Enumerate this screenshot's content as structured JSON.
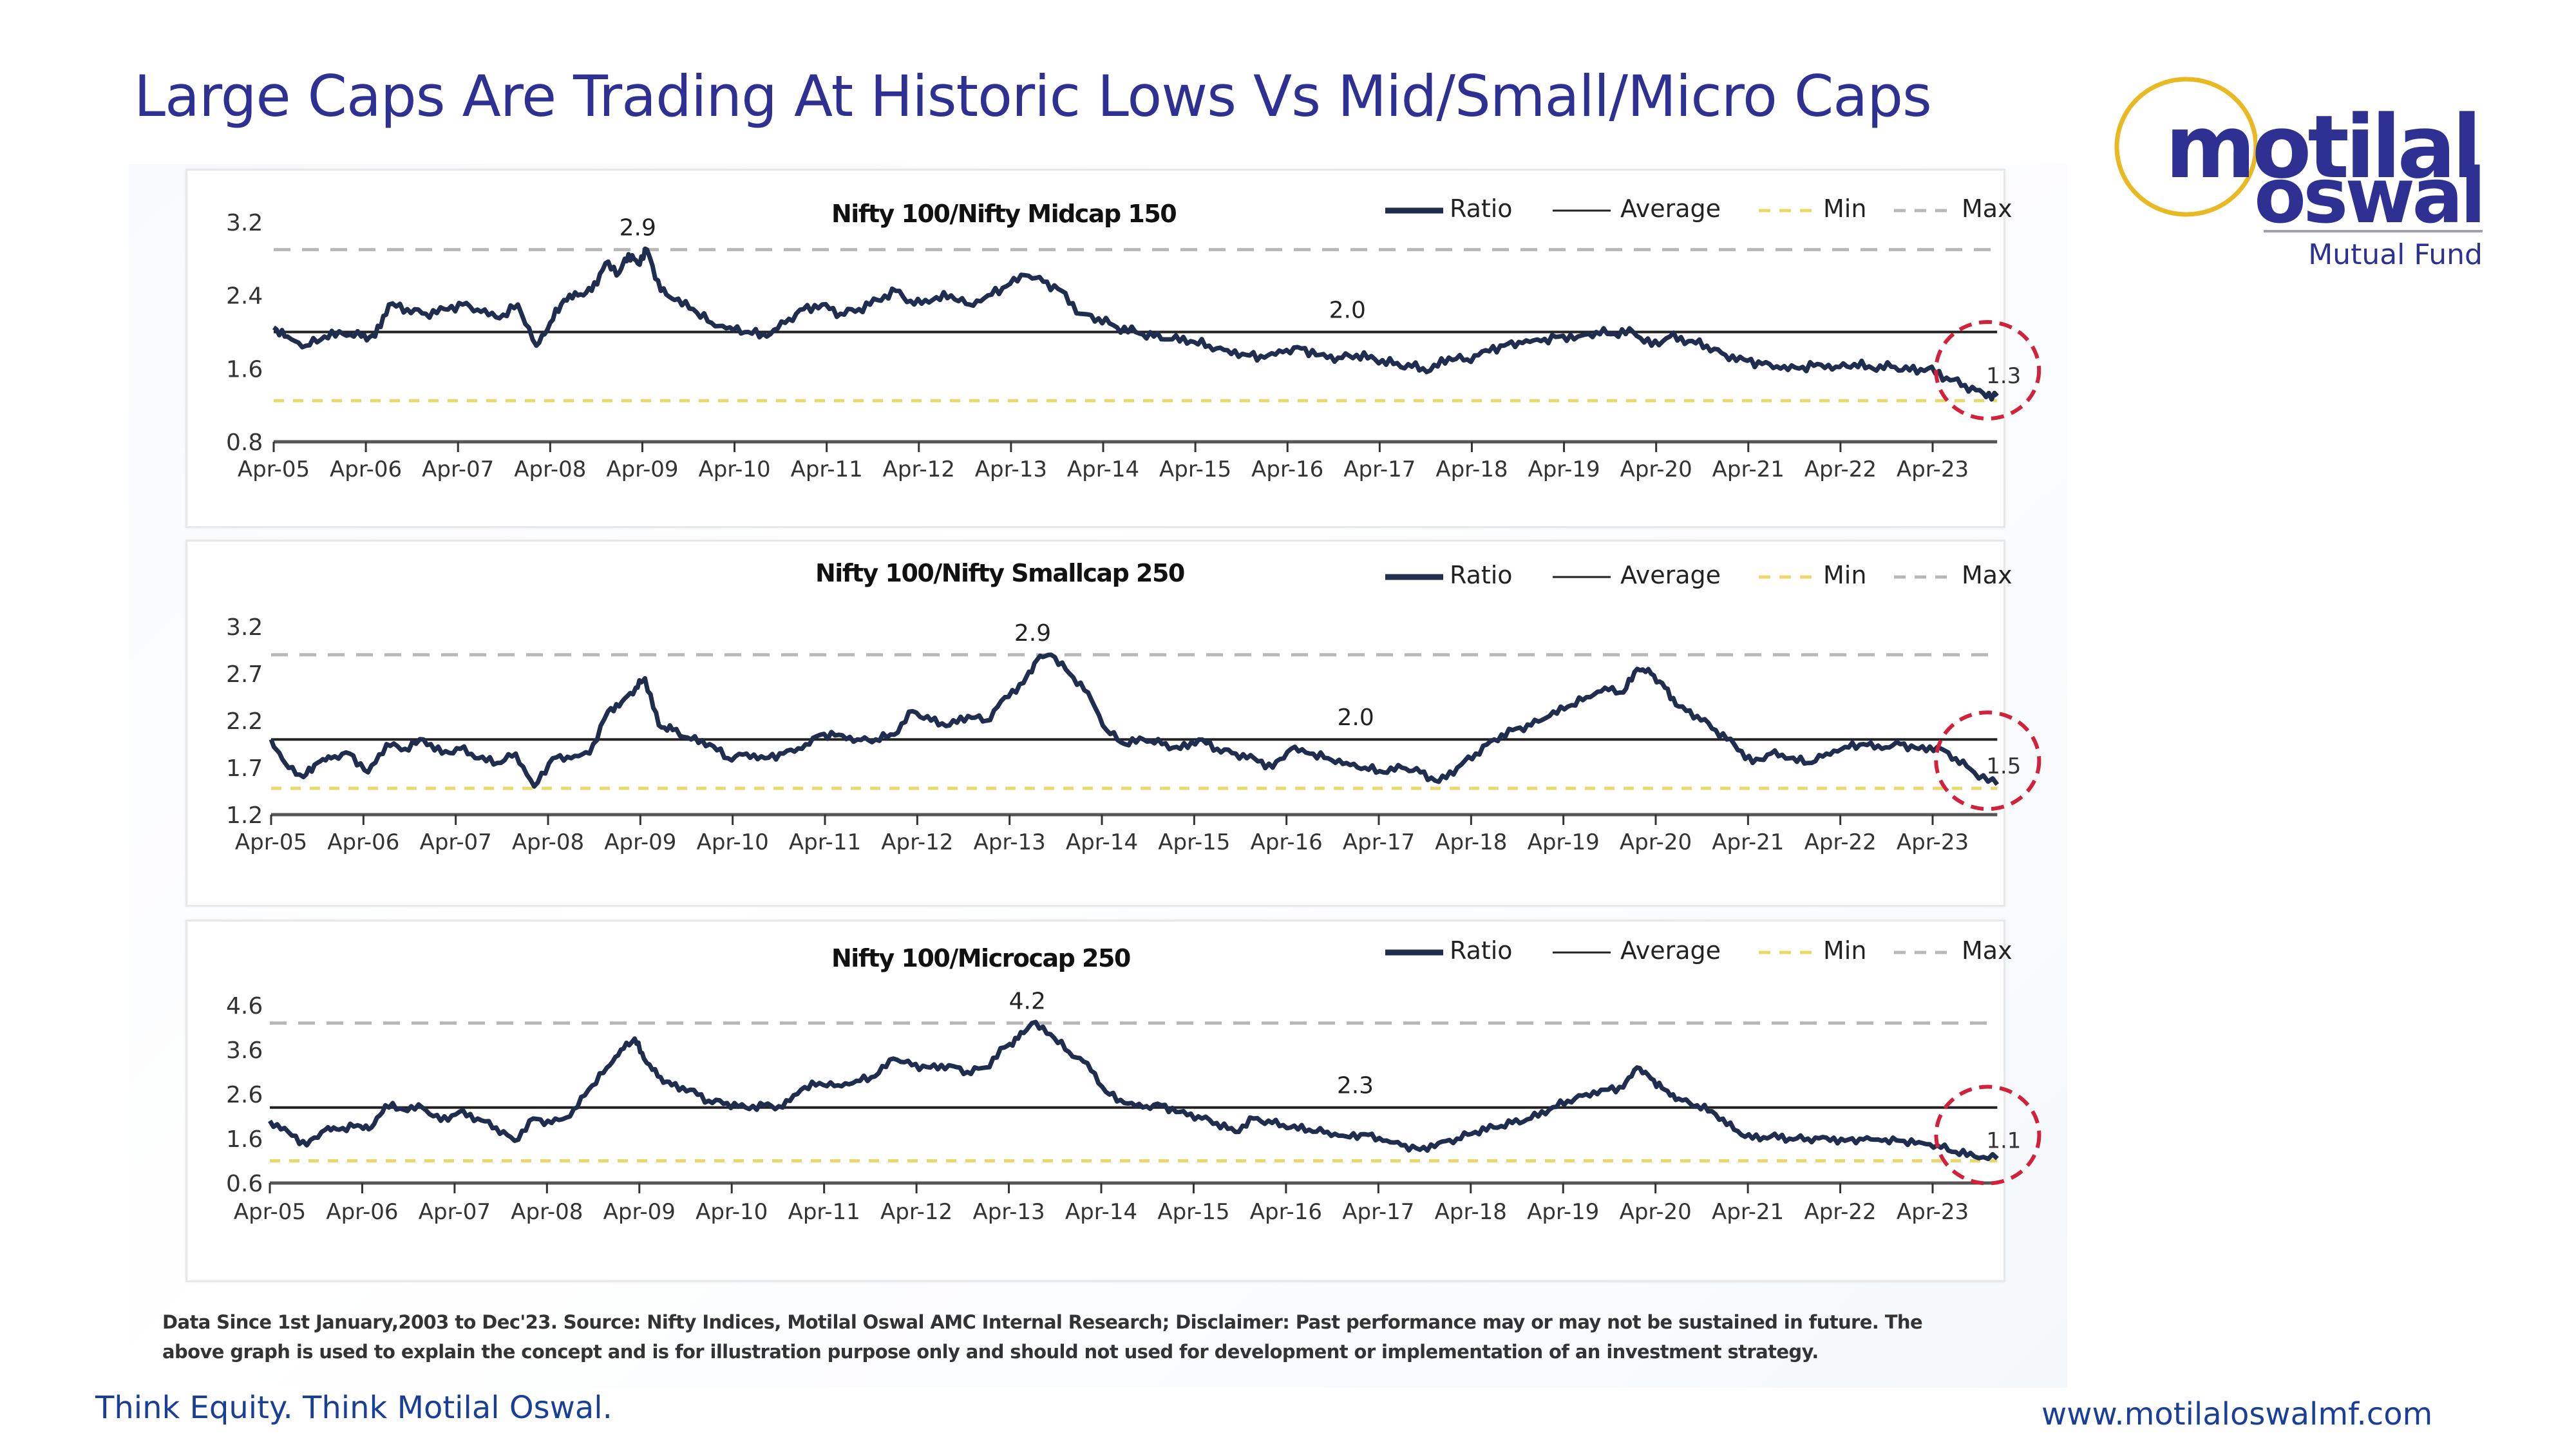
{
  "slide": {
    "title": "Large Caps Are Trading At Historic Lows Vs Mid/Small/Micro Caps",
    "logo": {
      "line1": "motilal",
      "line2": "oswal",
      "line3": "Mutual Fund",
      "ring_color": "#e8b923",
      "text_color": "#2e3192"
    },
    "footnote_line1": "Data Since 1st January,2003 to Dec'23. Source: Nifty Indices, Motilal Oswal AMC Internal Research; Disclaimer: Past performance may or may not be sustained in future. The",
    "footnote_line2": "above graph is used to explain the concept and is for illustration purpose only and should not used for development or implementation of an investment strategy.",
    "footer_left": "Think Equity. Think Motilal Oswal.",
    "footer_right": "www.motilaloswalmf.com"
  },
  "legend": {
    "ratio": "Ratio",
    "average": "Average",
    "min": "Min",
    "max": "Max"
  },
  "colors": {
    "ratio": "#1f2d4e",
    "average": "#222222",
    "min": "#e8d96a",
    "max": "#b8b8b8",
    "highlight": "#d0223a",
    "title": "#2e3192"
  },
  "chart_data": [
    {
      "type": "line",
      "title": "Nifty 100/Nifty Midcap 150",
      "xlabel": "",
      "ylabel": "",
      "x_ticks": [
        "Apr-05",
        "Apr-06",
        "Apr-07",
        "Apr-08",
        "Apr-09",
        "Apr-10",
        "Apr-11",
        "Apr-12",
        "Apr-13",
        "Apr-14",
        "Apr-15",
        "Apr-16",
        "Apr-17",
        "Apr-18",
        "Apr-19",
        "Apr-20",
        "Apr-21",
        "Apr-22",
        "Apr-23"
      ],
      "y_ticks": [
        3.2,
        2.4,
        1.6,
        0.8
      ],
      "ylim": [
        0.8,
        3.2
      ],
      "x_range_years": [
        2005.25,
        2023.95
      ],
      "average": 2.0,
      "min": 1.25,
      "max": 2.9,
      "annotations": [
        {
          "label": "2.9",
          "t": 2009.2,
          "value": 2.9
        },
        {
          "label": "2.0",
          "t": 2016.9,
          "value": 2.0
        },
        {
          "label": "1.3",
          "t": 2023.9,
          "value": 1.3,
          "highlight": true
        }
      ],
      "series": [
        {
          "name": "Ratio",
          "t": [
            2005.25,
            2005.4,
            2005.6,
            2005.8,
            2006.0,
            2006.2,
            2006.35,
            2006.5,
            2006.7,
            2006.9,
            2007.1,
            2007.3,
            2007.5,
            2007.7,
            2007.9,
            2008.1,
            2008.25,
            2008.4,
            2008.55,
            2008.7,
            2008.85,
            2009.0,
            2009.1,
            2009.2,
            2009.3,
            2009.45,
            2009.6,
            2009.8,
            2010.0,
            2010.2,
            2010.4,
            2010.6,
            2010.8,
            2011.0,
            2011.2,
            2011.4,
            2011.6,
            2011.8,
            2012.0,
            2012.2,
            2012.4,
            2012.6,
            2012.8,
            2013.0,
            2013.2,
            2013.4,
            2013.6,
            2013.8,
            2014.0,
            2014.2,
            2014.4,
            2014.6,
            2014.8,
            2015.0,
            2015.2,
            2015.4,
            2015.6,
            2015.8,
            2016.0,
            2016.2,
            2016.4,
            2016.6,
            2016.8,
            2017.0,
            2017.2,
            2017.4,
            2017.6,
            2017.8,
            2018.0,
            2018.2,
            2018.4,
            2018.6,
            2018.8,
            2019.0,
            2019.2,
            2019.4,
            2019.6,
            2019.8,
            2020.0,
            2020.2,
            2020.4,
            2020.6,
            2020.8,
            2021.0,
            2021.2,
            2021.4,
            2021.6,
            2021.8,
            2022.0,
            2022.2,
            2022.4,
            2022.6,
            2022.8,
            2023.0,
            2023.2,
            2023.4,
            2023.6,
            2023.8,
            2023.95
          ],
          "values": [
            2.05,
            1.95,
            1.85,
            1.95,
            1.98,
            1.95,
            1.95,
            2.3,
            2.25,
            2.2,
            2.25,
            2.3,
            2.22,
            2.15,
            2.3,
            1.85,
            2.1,
            2.35,
            2.4,
            2.45,
            2.75,
            2.65,
            2.85,
            2.75,
            2.9,
            2.45,
            2.35,
            2.25,
            2.1,
            2.05,
            2.0,
            1.95,
            2.1,
            2.25,
            2.3,
            2.2,
            2.25,
            2.35,
            2.45,
            2.3,
            2.35,
            2.4,
            2.3,
            2.4,
            2.5,
            2.62,
            2.55,
            2.45,
            2.2,
            2.15,
            2.05,
            2.0,
            1.95,
            1.92,
            1.9,
            1.85,
            1.8,
            1.75,
            1.72,
            1.78,
            1.82,
            1.75,
            1.72,
            1.75,
            1.7,
            1.65,
            1.62,
            1.58,
            1.72,
            1.7,
            1.8,
            1.85,
            1.88,
            1.9,
            1.95,
            1.95,
            2.0,
            1.98,
            2.0,
            1.85,
            1.95,
            1.9,
            1.85,
            1.75,
            1.7,
            1.65,
            1.6,
            1.6,
            1.65,
            1.62,
            1.65,
            1.6,
            1.62,
            1.58,
            1.6,
            1.5,
            1.42,
            1.33,
            1.3
          ]
        }
      ]
    },
    {
      "type": "line",
      "title": "Nifty 100/Nifty Smallcap 250",
      "xlabel": "",
      "ylabel": "",
      "x_ticks": [
        "Apr-05",
        "Apr-06",
        "Apr-07",
        "Apr-08",
        "Apr-09",
        "Apr-10",
        "Apr-11",
        "Apr-12",
        "Apr-13",
        "Apr-14",
        "Apr-15",
        "Apr-16",
        "Apr-17",
        "Apr-18",
        "Apr-19",
        "Apr-20",
        "Apr-21",
        "Apr-22",
        "Apr-23"
      ],
      "y_ticks": [
        3.2,
        2.7,
        2.2,
        1.7,
        1.2
      ],
      "ylim": [
        1.2,
        3.2
      ],
      "x_range_years": [
        2005.25,
        2023.95
      ],
      "average": 2.0,
      "min": 1.48,
      "max": 2.9,
      "annotations": [
        {
          "label": "2.9",
          "t": 2013.5,
          "value": 2.9
        },
        {
          "label": "2.0",
          "t": 2017.0,
          "value": 2.0
        },
        {
          "label": "1.5",
          "t": 2023.9,
          "value": 1.5,
          "highlight": true
        }
      ],
      "series": [
        {
          "name": "Ratio",
          "t": [
            2005.25,
            2005.4,
            2005.6,
            2005.75,
            2005.9,
            2006.1,
            2006.3,
            2006.5,
            2006.7,
            2006.9,
            2007.1,
            2007.3,
            2007.5,
            2007.7,
            2007.9,
            2008.1,
            2008.3,
            2008.5,
            2008.7,
            2008.9,
            2009.05,
            2009.2,
            2009.3,
            2009.45,
            2009.6,
            2009.8,
            2010.0,
            2010.2,
            2010.4,
            2010.6,
            2010.8,
            2011.0,
            2011.2,
            2011.4,
            2011.6,
            2011.8,
            2012.0,
            2012.2,
            2012.4,
            2012.6,
            2012.8,
            2013.0,
            2013.2,
            2013.4,
            2013.55,
            2013.7,
            2013.9,
            2014.1,
            2014.3,
            2014.5,
            2014.7,
            2014.9,
            2015.1,
            2015.3,
            2015.5,
            2015.7,
            2015.9,
            2016.1,
            2016.3,
            2016.5,
            2016.7,
            2016.9,
            2017.1,
            2017.3,
            2017.5,
            2017.7,
            2017.9,
            2018.1,
            2018.3,
            2018.5,
            2018.7,
            2018.9,
            2019.1,
            2019.3,
            2019.5,
            2019.7,
            2019.9,
            2020.05,
            2020.2,
            2020.35,
            2020.5,
            2020.7,
            2020.9,
            2021.1,
            2021.3,
            2021.5,
            2021.7,
            2021.9,
            2022.1,
            2022.3,
            2022.5,
            2022.7,
            2022.9,
            2023.1,
            2023.3,
            2023.5,
            2023.7,
            2023.95
          ],
          "values": [
            2.0,
            1.75,
            1.6,
            1.75,
            1.8,
            1.85,
            1.65,
            1.95,
            1.9,
            2.0,
            1.85,
            1.9,
            1.8,
            1.75,
            1.85,
            1.5,
            1.8,
            1.8,
            1.85,
            2.3,
            2.4,
            2.55,
            2.65,
            2.15,
            2.1,
            2.0,
            1.95,
            1.8,
            1.85,
            1.8,
            1.85,
            1.9,
            2.05,
            2.05,
            2.0,
            2.0,
            2.05,
            2.3,
            2.2,
            2.15,
            2.25,
            2.2,
            2.45,
            2.6,
            2.85,
            2.9,
            2.7,
            2.5,
            2.1,
            1.95,
            2.0,
            1.95,
            1.9,
            2.0,
            1.9,
            1.85,
            1.8,
            1.7,
            1.9,
            1.85,
            1.8,
            1.75,
            1.7,
            1.65,
            1.7,
            1.65,
            1.55,
            1.7,
            1.85,
            2.0,
            2.1,
            2.15,
            2.25,
            2.35,
            2.45,
            2.55,
            2.5,
            2.75,
            2.7,
            2.55,
            2.35,
            2.25,
            2.1,
            1.95,
            1.75,
            1.85,
            1.8,
            1.75,
            1.85,
            1.92,
            1.95,
            1.9,
            1.95,
            1.9,
            1.92,
            1.8,
            1.65,
            1.52
          ]
        }
      ]
    },
    {
      "type": "line",
      "title": "Nifty 100/Microcap 250",
      "xlabel": "",
      "ylabel": "",
      "x_ticks": [
        "Apr-05",
        "Apr-06",
        "Apr-07",
        "Apr-08",
        "Apr-09",
        "Apr-10",
        "Apr-11",
        "Apr-12",
        "Apr-13",
        "Apr-14",
        "Apr-15",
        "Apr-16",
        "Apr-17",
        "Apr-18",
        "Apr-19",
        "Apr-20",
        "Apr-21",
        "Apr-22",
        "Apr-23"
      ],
      "y_ticks": [
        4.6,
        3.6,
        2.6,
        1.6,
        0.6
      ],
      "ylim": [
        0.6,
        4.6
      ],
      "x_range_years": [
        2005.25,
        2023.95
      ],
      "average": 2.3,
      "min": 1.1,
      "max": 4.2,
      "annotations": [
        {
          "label": "4.2",
          "t": 2013.45,
          "value": 4.2
        },
        {
          "label": "2.3",
          "t": 2017.0,
          "value": 2.3
        },
        {
          "label": "1.1",
          "t": 2023.9,
          "value": 1.1,
          "highlight": true
        }
      ],
      "series": [
        {
          "name": "Ratio",
          "t": [
            2005.25,
            2005.45,
            2005.65,
            2005.85,
            2006.0,
            2006.2,
            2006.35,
            2006.5,
            2006.7,
            2006.9,
            2007.1,
            2007.3,
            2007.5,
            2007.7,
            2007.9,
            2008.1,
            2008.3,
            2008.5,
            2008.7,
            2008.9,
            2009.05,
            2009.2,
            2009.3,
            2009.45,
            2009.6,
            2009.8,
            2010.0,
            2010.2,
            2010.4,
            2010.6,
            2010.8,
            2011.0,
            2011.2,
            2011.4,
            2011.6,
            2011.8,
            2012.0,
            2012.2,
            2012.4,
            2012.6,
            2012.8,
            2013.0,
            2013.2,
            2013.35,
            2013.5,
            2013.7,
            2013.9,
            2014.1,
            2014.3,
            2014.5,
            2014.7,
            2014.9,
            2015.1,
            2015.3,
            2015.5,
            2015.7,
            2015.9,
            2016.1,
            2016.3,
            2016.5,
            2016.7,
            2016.9,
            2017.1,
            2017.3,
            2017.5,
            2017.7,
            2017.9,
            2018.1,
            2018.3,
            2018.5,
            2018.7,
            2018.9,
            2019.1,
            2019.3,
            2019.5,
            2019.7,
            2019.9,
            2020.05,
            2020.2,
            2020.35,
            2020.5,
            2020.7,
            2020.9,
            2021.1,
            2021.3,
            2021.5,
            2021.7,
            2021.9,
            2022.1,
            2022.3,
            2022.5,
            2022.7,
            2022.9,
            2023.1,
            2023.3,
            2023.5,
            2023.7,
            2023.95
          ],
          "values": [
            2.0,
            1.75,
            1.45,
            1.8,
            1.8,
            1.9,
            1.85,
            2.35,
            2.25,
            2.3,
            2.0,
            2.2,
            2.05,
            1.85,
            1.55,
            2.05,
            1.95,
            2.1,
            2.7,
            3.2,
            3.6,
            3.85,
            3.4,
            3.0,
            2.8,
            2.7,
            2.45,
            2.4,
            2.3,
            2.35,
            2.3,
            2.7,
            2.85,
            2.8,
            2.9,
            3.0,
            3.4,
            3.25,
            3.2,
            3.25,
            3.1,
            3.2,
            3.65,
            3.85,
            4.2,
            3.95,
            3.55,
            3.3,
            2.65,
            2.4,
            2.3,
            2.35,
            2.2,
            2.1,
            1.95,
            1.75,
            2.05,
            1.95,
            1.85,
            1.8,
            1.75,
            1.65,
            1.7,
            1.55,
            1.45,
            1.35,
            1.5,
            1.6,
            1.75,
            1.85,
            1.95,
            2.05,
            2.25,
            2.45,
            2.6,
            2.7,
            2.75,
            3.2,
            2.95,
            2.7,
            2.5,
            2.35,
            2.15,
            1.8,
            1.6,
            1.65,
            1.6,
            1.6,
            1.62,
            1.55,
            1.58,
            1.55,
            1.55,
            1.52,
            1.45,
            1.3,
            1.2,
            1.15
          ]
        }
      ]
    }
  ]
}
